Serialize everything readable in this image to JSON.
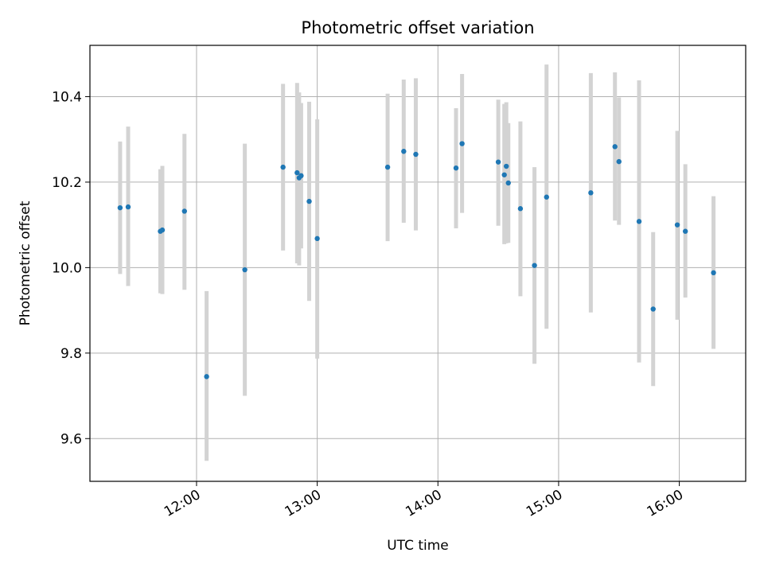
{
  "chart_data": {
    "type": "scatter",
    "title": "Photometric offset variation",
    "xlabel": "UTC time",
    "ylabel": "Photometric offset",
    "x_axis_type": "time",
    "xlim": [
      "11:07",
      "16:33"
    ],
    "ylim": [
      9.5,
      10.52
    ],
    "xticks": [
      "12:00",
      "13:00",
      "14:00",
      "15:00",
      "16:00"
    ],
    "yticks": [
      9.6,
      9.8,
      10.0,
      10.2,
      10.4
    ],
    "grid": true,
    "colors": {
      "point": "#1f77b4",
      "errorbar": "#d3d3d3",
      "grid": "#b0b0b0"
    },
    "series": [
      {
        "points": [
          {
            "x": "11:22",
            "y": 10.14,
            "ymin": 9.985,
            "ymax": 10.295
          },
          {
            "x": "11:26",
            "y": 10.142,
            "ymin": 9.957,
            "ymax": 10.33
          },
          {
            "x": "11:42",
            "y": 10.085,
            "ymin": 9.94,
            "ymax": 10.23
          },
          {
            "x": "11:43",
            "y": 10.088,
            "ymin": 9.938,
            "ymax": 10.238
          },
          {
            "x": "11:54",
            "y": 10.132,
            "ymin": 9.948,
            "ymax": 10.313
          },
          {
            "x": "12:05",
            "y": 9.745,
            "ymin": 9.548,
            "ymax": 9.945
          },
          {
            "x": "12:24",
            "y": 9.995,
            "ymin": 9.7,
            "ymax": 10.29
          },
          {
            "x": "12:43",
            "y": 10.235,
            "ymin": 10.04,
            "ymax": 10.43
          },
          {
            "x": "12:50",
            "y": 10.222,
            "ymin": 10.01,
            "ymax": 10.432
          },
          {
            "x": "12:51",
            "y": 10.21,
            "ymin": 10.005,
            "ymax": 10.41
          },
          {
            "x": "12:52",
            "y": 10.215,
            "ymin": 10.045,
            "ymax": 10.385
          },
          {
            "x": "12:56",
            "y": 10.155,
            "ymin": 9.922,
            "ymax": 10.388
          },
          {
            "x": "13:00",
            "y": 10.068,
            "ymin": 9.787,
            "ymax": 10.347
          },
          {
            "x": "13:35",
            "y": 10.235,
            "ymin": 10.062,
            "ymax": 10.407
          },
          {
            "x": "13:43",
            "y": 10.272,
            "ymin": 10.105,
            "ymax": 10.44
          },
          {
            "x": "13:49",
            "y": 10.265,
            "ymin": 10.087,
            "ymax": 10.443
          },
          {
            "x": "14:09",
            "y": 10.233,
            "ymin": 10.092,
            "ymax": 10.373
          },
          {
            "x": "14:12",
            "y": 10.29,
            "ymin": 10.128,
            "ymax": 10.453
          },
          {
            "x": "14:30",
            "y": 10.247,
            "ymin": 10.098,
            "ymax": 10.393
          },
          {
            "x": "14:33",
            "y": 10.217,
            "ymin": 10.055,
            "ymax": 10.383
          },
          {
            "x": "14:34",
            "y": 10.237,
            "ymin": 10.057,
            "ymax": 10.387
          },
          {
            "x": "14:35",
            "y": 10.198,
            "ymin": 10.058,
            "ymax": 10.338
          },
          {
            "x": "14:41",
            "y": 10.138,
            "ymin": 9.933,
            "ymax": 10.342
          },
          {
            "x": "14:48",
            "y": 10.005,
            "ymin": 9.775,
            "ymax": 10.235
          },
          {
            "x": "14:54",
            "y": 10.165,
            "ymin": 9.857,
            "ymax": 10.475
          },
          {
            "x": "15:16",
            "y": 10.175,
            "ymin": 9.895,
            "ymax": 10.455
          },
          {
            "x": "15:28",
            "y": 10.283,
            "ymin": 10.11,
            "ymax": 10.457
          },
          {
            "x": "15:30",
            "y": 10.248,
            "ymin": 10.1,
            "ymax": 10.398
          },
          {
            "x": "15:40",
            "y": 10.108,
            "ymin": 9.778,
            "ymax": 10.438
          },
          {
            "x": "15:47",
            "y": 9.903,
            "ymin": 9.723,
            "ymax": 10.083
          },
          {
            "x": "15:59",
            "y": 10.1,
            "ymin": 9.878,
            "ymax": 10.32
          },
          {
            "x": "16:03",
            "y": 10.085,
            "ymin": 9.93,
            "ymax": 10.242
          },
          {
            "x": "16:17",
            "y": 9.988,
            "ymin": 9.81,
            "ymax": 10.167
          }
        ]
      }
    ]
  }
}
